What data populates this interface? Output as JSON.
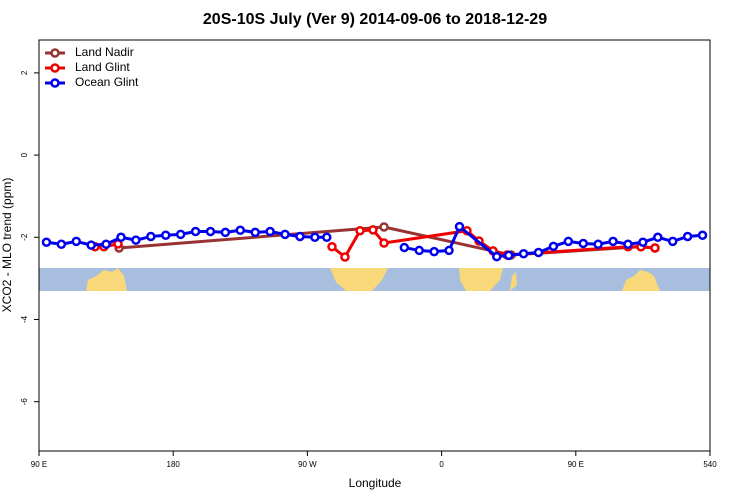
{
  "chart_data": {
    "type": "line",
    "title": "20S-10S July (Ver 9)   2014-09-06 to 2018-12-29",
    "x_label": "Longitude",
    "y_label": "XCO2 - MLO trend (ppm)",
    "xlim": [
      90,
      540
    ],
    "ylim": [
      -7.2,
      2.8
    ],
    "xticks": [
      {
        "value": 90,
        "label": "90 E"
      },
      180,
      {
        "value": 270,
        "label": "90 W"
      },
      {
        "value": 360,
        "label": "0"
      },
      {
        "value": 450,
        "label": "90 E"
      },
      540
    ],
    "yticks": [
      -6,
      -4,
      -2,
      0,
      2
    ],
    "legend": "top-left",
    "series": [
      {
        "name": "Land Nadir",
        "color": "#993333",
        "x": [
          143.7,
          321.4,
          406.6,
          493.7,
          503.1
        ],
        "values": [
          -2.26,
          -1.75,
          -2.43,
          -2.23,
          -2.26
        ]
      },
      {
        "name": "Land Glint",
        "color": "#ee0000",
        "x": [
          127.6,
          133.6,
          143.0,
          181.2,
          221.5,
          286.5,
          295.2,
          305.3,
          314.0,
          321.4,
          377.0,
          385.1,
          394.5,
          403.9,
          485.0,
          493.7,
          503.1
        ],
        "values": [
          -2.23,
          -2.23,
          -2.16,
          null,
          null,
          -2.23,
          -2.48,
          -1.84,
          -1.82,
          -2.14,
          -1.84,
          -2.09,
          -2.33,
          -2.43,
          -2.23,
          -2.23,
          -2.26
        ]
      },
      {
        "name": "Ocean Glint",
        "color": "#0000ee",
        "x": [
          95,
          105,
          115,
          125,
          135,
          145,
          155,
          165,
          175,
          185,
          195,
          205,
          215,
          225,
          235,
          245,
          255,
          265,
          275,
          283,
          325,
          335,
          345,
          355,
          365,
          372,
          397,
          405,
          415,
          425,
          435,
          445,
          455,
          465,
          475,
          485,
          495,
          505,
          515,
          525,
          535
        ],
        "values": [
          -2.12,
          -2.17,
          -2.1,
          -2.19,
          -2.17,
          -2.0,
          -2.07,
          -1.98,
          -1.95,
          -1.93,
          -1.86,
          -1.86,
          -1.88,
          -1.83,
          -1.88,
          -1.86,
          -1.93,
          -1.98,
          -2.0,
          -2.0,
          null,
          -2.25,
          -2.32,
          -2.35,
          -2.32,
          -1.74,
          -2.47,
          -2.44,
          -2.4,
          -2.37,
          -2.22,
          -2.1,
          -2.15,
          -2.17,
          -2.1,
          -2.17,
          -2.12,
          -2.0,
          -2.1,
          -1.98,
          -1.95
        ]
      }
    ]
  }
}
